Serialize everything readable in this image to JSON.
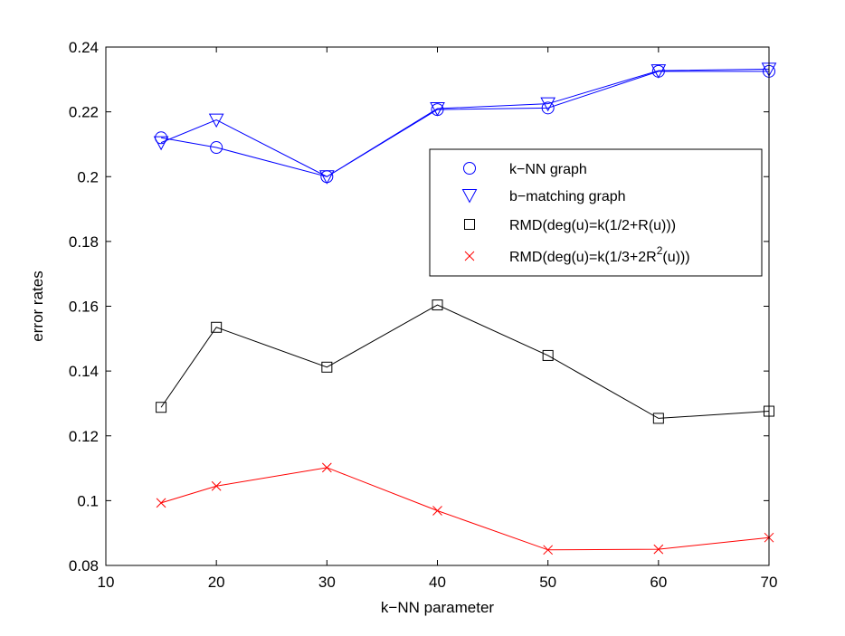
{
  "chart_data": {
    "type": "line",
    "title": "",
    "xlabel": "k−NN parameter",
    "ylabel": "error rates",
    "xlim": [
      10,
      70
    ],
    "ylim": [
      0.08,
      0.24
    ],
    "x_ticks": [
      10,
      20,
      30,
      40,
      50,
      60,
      70
    ],
    "y_ticks": [
      0.08,
      0.1,
      0.12,
      0.14,
      0.16,
      0.18,
      0.2,
      0.22,
      0.24
    ],
    "x_tick_labels": [
      "10",
      "20",
      "30",
      "40",
      "50",
      "60",
      "70"
    ],
    "y_tick_labels": [
      "0.08",
      "0.1",
      "0.12",
      "0.14",
      "0.16",
      "0.18",
      "0.2",
      "0.22",
      "0.24"
    ],
    "grid": false,
    "legend_position": "center-right",
    "x": [
      15,
      20,
      30,
      40,
      50,
      60,
      70
    ],
    "series": [
      {
        "name": "k−NN graph",
        "legend_text": {
          "main": "k−NN graph",
          "sup": "",
          "tail": ""
        },
        "marker": "circle",
        "color": "#0000ff",
        "values": [
          0.212,
          0.209,
          0.2,
          0.2207,
          0.2212,
          0.2325,
          0.2325
        ]
      },
      {
        "name": "b−matching graph",
        "legend_text": {
          "main": "b−matching graph",
          "sup": "",
          "tail": ""
        },
        "marker": "triangle-down",
        "color": "#0000ff",
        "values": [
          0.2105,
          0.2175,
          0.2,
          0.221,
          0.2225,
          0.2327,
          0.2332
        ]
      },
      {
        "name": "RMD(deg(u)=k(1/2+R(u)))",
        "legend_text": {
          "main": "RMD(deg(u)=k(1/2+R(u)))",
          "sup": "",
          "tail": ""
        },
        "marker": "square",
        "color": "#000000",
        "values": [
          0.1288,
          0.1535,
          0.1412,
          0.1604,
          0.1448,
          0.1254,
          0.1276
        ]
      },
      {
        "name": "RMD(deg(u)=k(1/3+2R2(u)))",
        "legend_text": {
          "main": "RMD(deg(u)=k(1/3+2R",
          "sup": "2",
          "tail": "(u)))"
        },
        "marker": "x",
        "color": "#ff0000",
        "values": [
          0.0993,
          0.1045,
          0.1102,
          0.0969,
          0.0848,
          0.085,
          0.0886
        ]
      }
    ]
  }
}
